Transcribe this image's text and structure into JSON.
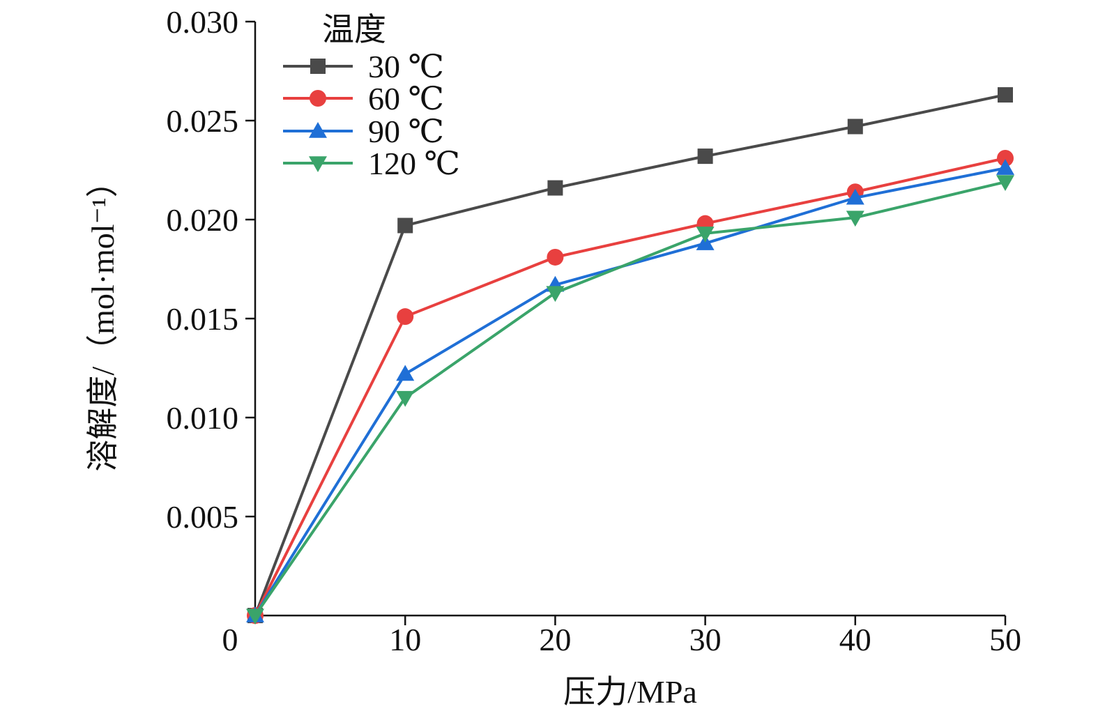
{
  "chart_data": {
    "type": "line",
    "title": "",
    "xlabel": "压力/MPa",
    "ylabel": "溶解度/（mol·mol⁻¹）",
    "x": [
      0,
      10,
      20,
      30,
      40,
      50
    ],
    "xlim": [
      0,
      50
    ],
    "ylim": [
      0,
      0.03
    ],
    "x_ticks": [
      0,
      10,
      20,
      30,
      40,
      50
    ],
    "x_tick_labels": [
      "0",
      "10",
      "20",
      "30",
      "40",
      "50"
    ],
    "y_ticks": [
      0.005,
      0.01,
      0.015,
      0.02,
      0.025,
      0.03
    ],
    "y_tick_labels": [
      "0.005",
      "0.010",
      "0.015",
      "0.020",
      "0.025",
      "0.030"
    ],
    "grid": false,
    "legend": {
      "title": "温度",
      "position": "top-left"
    },
    "series": [
      {
        "name": "30 ℃",
        "color": "#4a4a4a",
        "marker": "square",
        "values": [
          0,
          0.0197,
          0.0216,
          0.0232,
          0.0247,
          0.0263
        ]
      },
      {
        "name": "60 ℃",
        "color": "#e8403f",
        "marker": "circle",
        "values": [
          0,
          0.0151,
          0.0181,
          0.0198,
          0.0214,
          0.0231
        ]
      },
      {
        "name": "90 ℃",
        "color": "#1f6fd6",
        "marker": "triangle-up",
        "values": [
          0,
          0.0122,
          0.0167,
          0.0188,
          0.0211,
          0.0226
        ]
      },
      {
        "name": "120 ℃",
        "color": "#3aa46a",
        "marker": "triangle-down",
        "values": [
          0,
          0.011,
          0.0163,
          0.0193,
          0.0201,
          0.0219
        ]
      }
    ]
  }
}
